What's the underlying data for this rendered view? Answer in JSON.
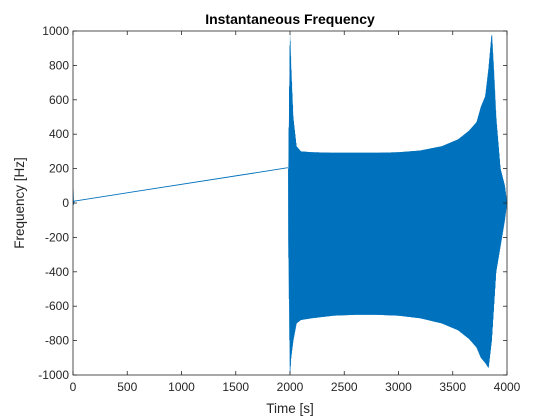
{
  "chart_data": {
    "type": "line",
    "title": "Instantaneous Frequency",
    "xlabel": "Time [s]",
    "ylabel": "Frequency [Hz]",
    "xlim": [
      0,
      4000
    ],
    "ylim": [
      -1000,
      1000
    ],
    "xticks": [
      0,
      500,
      1000,
      1500,
      2000,
      2500,
      3000,
      3500,
      4000
    ],
    "yticks": [
      -1000,
      -800,
      -600,
      -400,
      -200,
      0,
      200,
      400,
      600,
      800,
      1000
    ],
    "xtick_labels": [
      "0",
      "500",
      "1000",
      "1500",
      "2000",
      "2500",
      "3000",
      "3500",
      "4000"
    ],
    "ytick_labels": [
      "-1000",
      "-800",
      "-600",
      "-400",
      "-200",
      "0",
      "200",
      "400",
      "600",
      "800",
      "1000"
    ],
    "grid": false,
    "line_color": "#0072BD",
    "series": [
      {
        "segments": [
          {
            "kind": "initial-spike",
            "x": [
              0,
              5,
              10
            ],
            "y": [
              80,
              -10,
              10
            ]
          },
          {
            "kind": "linear-ramp",
            "x": [
              0,
              1980
            ],
            "y": [
              10,
              205
            ]
          },
          {
            "kind": "oscillation-envelope",
            "x": [
              1985,
              2000,
              2010,
              2030,
              2060,
              2100,
              2200,
              2400,
              2600,
              2800,
              3000,
              3200,
              3400,
              3550,
              3650,
              3720,
              3760,
              3800,
              3830,
              3860,
              3880,
              3900,
              3940,
              3980,
              4000
            ],
            "upper": [
              200,
              1000,
              800,
              500,
              330,
              300,
              295,
              292,
              292,
              292,
              295,
              305,
              330,
              370,
              420,
              470,
              560,
              620,
              780,
              990,
              760,
              500,
              200,
              100,
              0
            ],
            "lower": [
              -200,
              -1000,
              -900,
              -800,
              -700,
              -680,
              -670,
              -655,
              -650,
              -650,
              -655,
              -670,
              -700,
              -740,
              -790,
              -840,
              -900,
              -930,
              -960,
              -800,
              -600,
              -400,
              -250,
              -100,
              0
            ]
          }
        ]
      }
    ]
  }
}
